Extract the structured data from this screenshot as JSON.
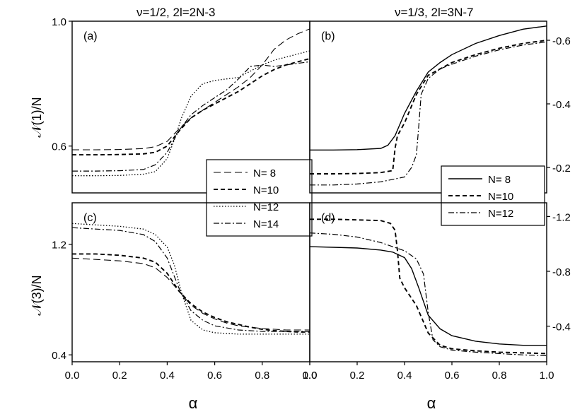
{
  "figure": {
    "column_titles": [
      "ν=1/2, 2l=2N-3",
      "ν=1/3, 2l=3N-7"
    ],
    "xlabel": "α",
    "ylabel_top": "𝒩(1)/N",
    "ylabel_bottom": "𝒩(3)/N"
  },
  "chart_data": [
    {
      "type": "line",
      "panel": "(a)",
      "xlim": [
        0,
        1
      ],
      "ylim": [
        0.45,
        1.0
      ],
      "yticks": [
        "1.0",
        "0.6"
      ],
      "ytick_values": [
        1.0,
        0.6
      ],
      "xticks": [],
      "y_axis_side": "left",
      "legend": {
        "position": "bottom-right",
        "entries": [
          "N= 8",
          "N=10",
          "N=12",
          "N=14"
        ]
      },
      "series": [
        {
          "name": "N= 8",
          "style": "longdash",
          "x": [
            0,
            0.1,
            0.2,
            0.3,
            0.35,
            0.4,
            0.45,
            0.5,
            0.55,
            0.6,
            0.65,
            0.7,
            0.75,
            0.8,
            0.85,
            0.9,
            0.95,
            1.0
          ],
          "y": [
            0.588,
            0.588,
            0.589,
            0.592,
            0.598,
            0.615,
            0.655,
            0.69,
            0.715,
            0.74,
            0.765,
            0.79,
            0.82,
            0.86,
            0.91,
            0.94,
            0.96,
            0.975
          ]
        },
        {
          "name": "N=10",
          "style": "dash",
          "x": [
            0,
            0.1,
            0.2,
            0.3,
            0.35,
            0.4,
            0.45,
            0.5,
            0.55,
            0.6,
            0.65,
            0.7,
            0.75,
            0.8,
            0.85,
            0.9,
            0.95,
            1.0
          ],
          "y": [
            0.572,
            0.572,
            0.573,
            0.575,
            0.58,
            0.6,
            0.648,
            0.69,
            0.715,
            0.735,
            0.755,
            0.775,
            0.8,
            0.825,
            0.845,
            0.86,
            0.87,
            0.88
          ]
        },
        {
          "name": "N=12",
          "style": "dot",
          "x": [
            0,
            0.1,
            0.2,
            0.3,
            0.35,
            0.4,
            0.43,
            0.46,
            0.5,
            0.55,
            0.6,
            0.65,
            0.7,
            0.75,
            0.8,
            0.85,
            0.9,
            0.95,
            1.0
          ],
          "y": [
            0.505,
            0.505,
            0.506,
            0.51,
            0.518,
            0.56,
            0.62,
            0.69,
            0.76,
            0.8,
            0.81,
            0.815,
            0.82,
            0.84,
            0.86,
            0.875,
            0.885,
            0.895,
            0.905
          ]
        },
        {
          "name": "N=14",
          "style": "dashdot",
          "x": [
            0,
            0.1,
            0.2,
            0.3,
            0.35,
            0.4,
            0.45,
            0.5,
            0.55,
            0.6,
            0.65,
            0.7,
            0.75,
            0.8,
            0.85,
            0.9,
            0.95,
            1.0
          ],
          "y": [
            0.52,
            0.52,
            0.521,
            0.525,
            0.54,
            0.58,
            0.65,
            0.7,
            0.73,
            0.755,
            0.78,
            0.815,
            0.855,
            0.86,
            0.855,
            0.86,
            0.865,
            0.87
          ]
        }
      ]
    },
    {
      "type": "line",
      "panel": "(b)",
      "xlim": [
        0,
        1
      ],
      "ylim": [
        0.12,
        0.66
      ],
      "yticks": [
        "0.6",
        "0.4",
        "0.2"
      ],
      "ytick_values": [
        0.6,
        0.4,
        0.2
      ],
      "xticks": [],
      "y_axis_side": "right",
      "legend": {
        "position": "bottom-right",
        "entries": [
          "N= 8",
          "N=10",
          "N=12"
        ]
      },
      "series": [
        {
          "name": "N= 8",
          "style": "solid",
          "x": [
            0,
            0.1,
            0.2,
            0.3,
            0.33,
            0.36,
            0.4,
            0.45,
            0.5,
            0.55,
            0.6,
            0.7,
            0.8,
            0.9,
            1.0
          ],
          "y": [
            0.255,
            0.255,
            0.256,
            0.26,
            0.27,
            0.3,
            0.37,
            0.44,
            0.5,
            0.53,
            0.555,
            0.59,
            0.615,
            0.635,
            0.645
          ]
        },
        {
          "name": "N=10",
          "style": "dash",
          "x": [
            0,
            0.1,
            0.2,
            0.3,
            0.35,
            0.36,
            0.37,
            0.4,
            0.45,
            0.5,
            0.55,
            0.6,
            0.7,
            0.8,
            0.9,
            1.0
          ],
          "y": [
            0.18,
            0.18,
            0.181,
            0.184,
            0.19,
            0.26,
            0.3,
            0.34,
            0.43,
            0.49,
            0.51,
            0.53,
            0.555,
            0.575,
            0.59,
            0.6
          ]
        },
        {
          "name": "N=12",
          "style": "dashdot",
          "x": [
            0,
            0.1,
            0.2,
            0.3,
            0.4,
            0.43,
            0.45,
            0.46,
            0.47,
            0.5,
            0.55,
            0.6,
            0.7,
            0.8,
            0.9,
            1.0
          ],
          "y": [
            0.145,
            0.145,
            0.148,
            0.155,
            0.17,
            0.2,
            0.24,
            0.33,
            0.43,
            0.48,
            0.51,
            0.525,
            0.55,
            0.57,
            0.585,
            0.595
          ]
        }
      ]
    },
    {
      "type": "line",
      "panel": "(c)",
      "xlim": [
        0,
        1
      ],
      "ylim": [
        0.35,
        1.5
      ],
      "yticks": [
        "1.2",
        "0.4"
      ],
      "ytick_values": [
        1.2,
        0.4
      ],
      "xticks": [
        "0.0",
        "0.2",
        "0.4",
        "0.6",
        "0.8",
        "1.0"
      ],
      "y_axis_side": "left",
      "series": [
        {
          "name": "N= 8",
          "style": "longdash",
          "x": [
            0,
            0.1,
            0.2,
            0.3,
            0.35,
            0.4,
            0.45,
            0.5,
            0.55,
            0.6,
            0.65,
            0.7,
            0.75,
            0.8,
            0.85,
            0.9,
            0.95,
            1.0
          ],
          "y": [
            1.1,
            1.09,
            1.08,
            1.06,
            1.03,
            0.96,
            0.86,
            0.76,
            0.7,
            0.66,
            0.63,
            0.61,
            0.6,
            0.59,
            0.585,
            0.58,
            0.58,
            0.58
          ]
        },
        {
          "name": "N=10",
          "style": "dash",
          "x": [
            0,
            0.1,
            0.2,
            0.3,
            0.35,
            0.4,
            0.45,
            0.5,
            0.55,
            0.6,
            0.65,
            0.7,
            0.75,
            0.8,
            0.85,
            0.9,
            0.95,
            1.0
          ],
          "y": [
            1.13,
            1.13,
            1.12,
            1.1,
            1.07,
            0.99,
            0.86,
            0.77,
            0.71,
            0.67,
            0.64,
            0.62,
            0.6,
            0.585,
            0.575,
            0.57,
            0.565,
            0.565
          ]
        },
        {
          "name": "N=12",
          "style": "dot",
          "x": [
            0,
            0.1,
            0.2,
            0.3,
            0.35,
            0.4,
            0.43,
            0.46,
            0.5,
            0.55,
            0.6,
            0.7,
            0.8,
            0.9,
            1.0
          ],
          "y": [
            1.35,
            1.34,
            1.33,
            1.31,
            1.27,
            1.18,
            1.05,
            0.85,
            0.65,
            0.58,
            0.56,
            0.55,
            0.55,
            0.55,
            0.55
          ]
        },
        {
          "name": "N=14",
          "style": "dashdot",
          "x": [
            0,
            0.1,
            0.2,
            0.3,
            0.35,
            0.4,
            0.45,
            0.5,
            0.55,
            0.6,
            0.7,
            0.8,
            0.9,
            1.0
          ],
          "y": [
            1.32,
            1.31,
            1.3,
            1.27,
            1.22,
            1.1,
            0.88,
            0.72,
            0.65,
            0.61,
            0.58,
            0.57,
            0.57,
            0.57
          ]
        }
      ]
    },
    {
      "type": "line",
      "panel": "(d)",
      "xlim": [
        0,
        1
      ],
      "ylim": [
        0.14,
        1.3
      ],
      "yticks": [
        "1.2",
        "0.8",
        "0.4"
      ],
      "ytick_values": [
        1.2,
        0.8,
        0.4
      ],
      "xticks": [
        "0.0",
        "0.2",
        "0.4",
        "0.6",
        "0.8",
        "1.0"
      ],
      "y_axis_side": "right",
      "series": [
        {
          "name": "N= 8",
          "style": "solid",
          "x": [
            0,
            0.1,
            0.2,
            0.3,
            0.35,
            0.4,
            0.43,
            0.46,
            0.5,
            0.55,
            0.6,
            0.7,
            0.8,
            0.9,
            1.0
          ],
          "y": [
            0.98,
            0.975,
            0.97,
            0.955,
            0.94,
            0.9,
            0.82,
            0.68,
            0.48,
            0.38,
            0.33,
            0.29,
            0.27,
            0.26,
            0.26
          ]
        },
        {
          "name": "N=10",
          "style": "dash",
          "x": [
            0,
            0.1,
            0.2,
            0.3,
            0.34,
            0.36,
            0.37,
            0.38,
            0.4,
            0.45,
            0.5,
            0.55,
            0.6,
            0.7,
            0.8,
            0.9,
            1.0
          ],
          "y": [
            1.18,
            1.18,
            1.175,
            1.17,
            1.15,
            1.1,
            0.95,
            0.75,
            0.68,
            0.55,
            0.35,
            0.26,
            0.235,
            0.22,
            0.21,
            0.205,
            0.2
          ]
        },
        {
          "name": "N=12",
          "style": "dashdot",
          "x": [
            0,
            0.1,
            0.2,
            0.3,
            0.4,
            0.45,
            0.48,
            0.5,
            0.52,
            0.55,
            0.6,
            0.7,
            0.8,
            0.9,
            1.0
          ],
          "y": [
            1.08,
            1.07,
            1.05,
            1.01,
            0.95,
            0.89,
            0.78,
            0.5,
            0.3,
            0.25,
            0.225,
            0.21,
            0.2,
            0.19,
            0.185
          ]
        }
      ]
    }
  ]
}
